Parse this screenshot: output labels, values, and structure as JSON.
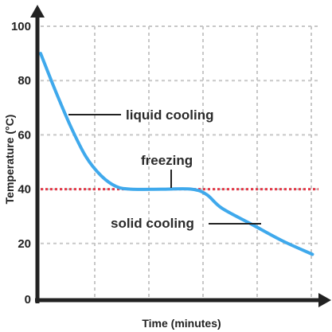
{
  "chart_data": {
    "type": "line",
    "title": "",
    "xlabel": "Time (minutes)",
    "ylabel": "Temperature (°C)",
    "ylim": [
      0,
      100
    ],
    "yticks": [
      "0",
      "20",
      "40",
      "60",
      "80",
      "100"
    ],
    "grid": true,
    "series": [
      {
        "values": [
          {
            "x": 0.0,
            "y": 90
          },
          {
            "x": 0.5,
            "y": 76
          },
          {
            "x": 1.0,
            "y": 63
          },
          {
            "x": 1.5,
            "y": 52
          },
          {
            "x": 2.0,
            "y": 45
          },
          {
            "x": 2.5,
            "y": 41
          },
          {
            "x": 3.0,
            "y": 40
          },
          {
            "x": 4.0,
            "y": 40
          },
          {
            "x": 5.0,
            "y": 40
          },
          {
            "x": 5.5,
            "y": 38
          },
          {
            "x": 6.0,
            "y": 33
          },
          {
            "x": 7.0,
            "y": 27
          },
          {
            "x": 8.0,
            "y": 21
          },
          {
            "x": 9.0,
            "y": 16
          }
        ]
      }
    ],
    "reference_line": {
      "y": 40,
      "color": "#e23b4a",
      "style": "dotted"
    },
    "annotations": [
      {
        "text": "liquid cooling",
        "x": 0.8,
        "y": 68
      },
      {
        "text": "freezing",
        "x": 4.0,
        "y": 40
      },
      {
        "text": "solid cooling",
        "x": 6.8,
        "y": 28
      }
    ],
    "colors": {
      "line": "#3fa9ec",
      "axis": "#222222",
      "grid": "#c8c8c8",
      "reference": "#e23b4a"
    }
  }
}
